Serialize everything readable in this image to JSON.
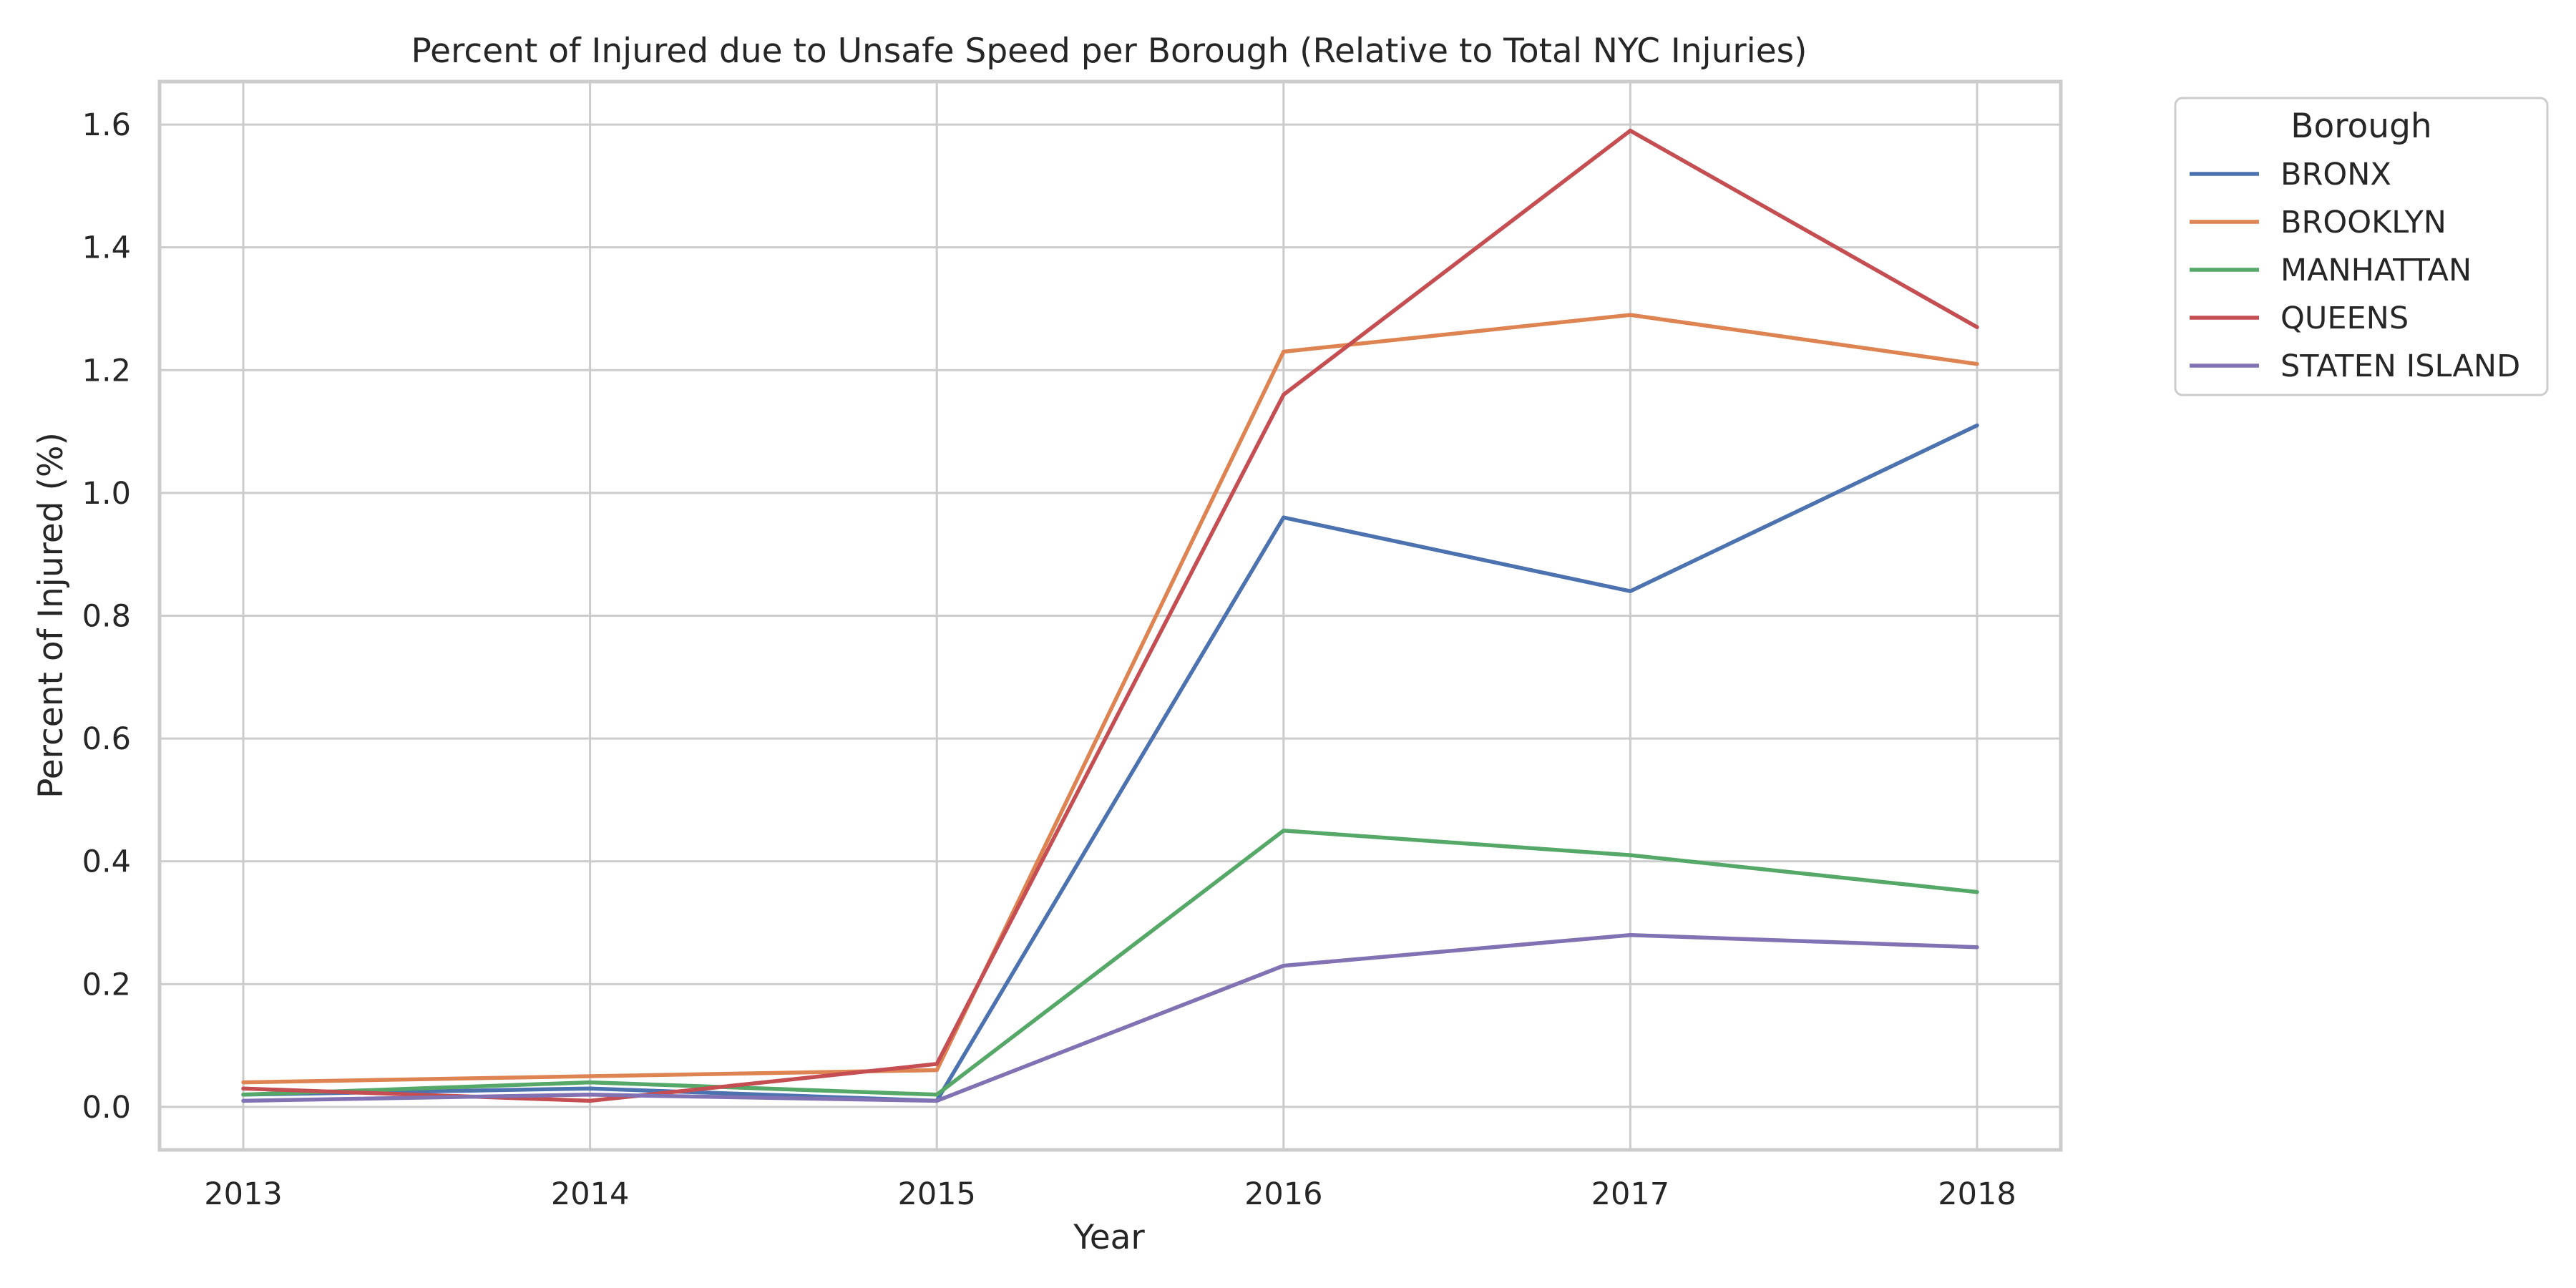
{
  "chart_data": {
    "type": "line",
    "title": "Percent of Injured due to Unsafe Speed per Borough (Relative to Total NYC Injuries)",
    "xlabel": "Year",
    "ylabel": "Percent of Injured (%)",
    "x": [
      "2013",
      "2014",
      "2015",
      "2016",
      "2017",
      "2018"
    ],
    "ylim": [
      -0.07,
      1.67
    ],
    "yticks": [
      "0.0",
      "0.2",
      "0.4",
      "0.6",
      "0.8",
      "1.0",
      "1.2",
      "1.4",
      "1.6"
    ],
    "grid": true,
    "legend": {
      "title": "Borough",
      "placement": "outside-top-right"
    },
    "series": [
      {
        "name": "BRONX",
        "color": "#4c72b0",
        "values": [
          0.02,
          0.03,
          0.01,
          0.96,
          0.84,
          1.11
        ]
      },
      {
        "name": "BROOKLYN",
        "color": "#dd8452",
        "values": [
          0.04,
          0.05,
          0.06,
          1.23,
          1.29,
          1.21
        ]
      },
      {
        "name": "MANHATTAN",
        "color": "#55a868",
        "values": [
          0.02,
          0.04,
          0.02,
          0.45,
          0.41,
          0.35
        ]
      },
      {
        "name": "QUEENS",
        "color": "#c44e52",
        "values": [
          0.03,
          0.01,
          0.07,
          1.16,
          1.59,
          1.27
        ]
      },
      {
        "name": "STATEN ISLAND",
        "color": "#8172b3",
        "values": [
          0.01,
          0.02,
          0.01,
          0.23,
          0.28,
          0.26
        ]
      }
    ]
  }
}
